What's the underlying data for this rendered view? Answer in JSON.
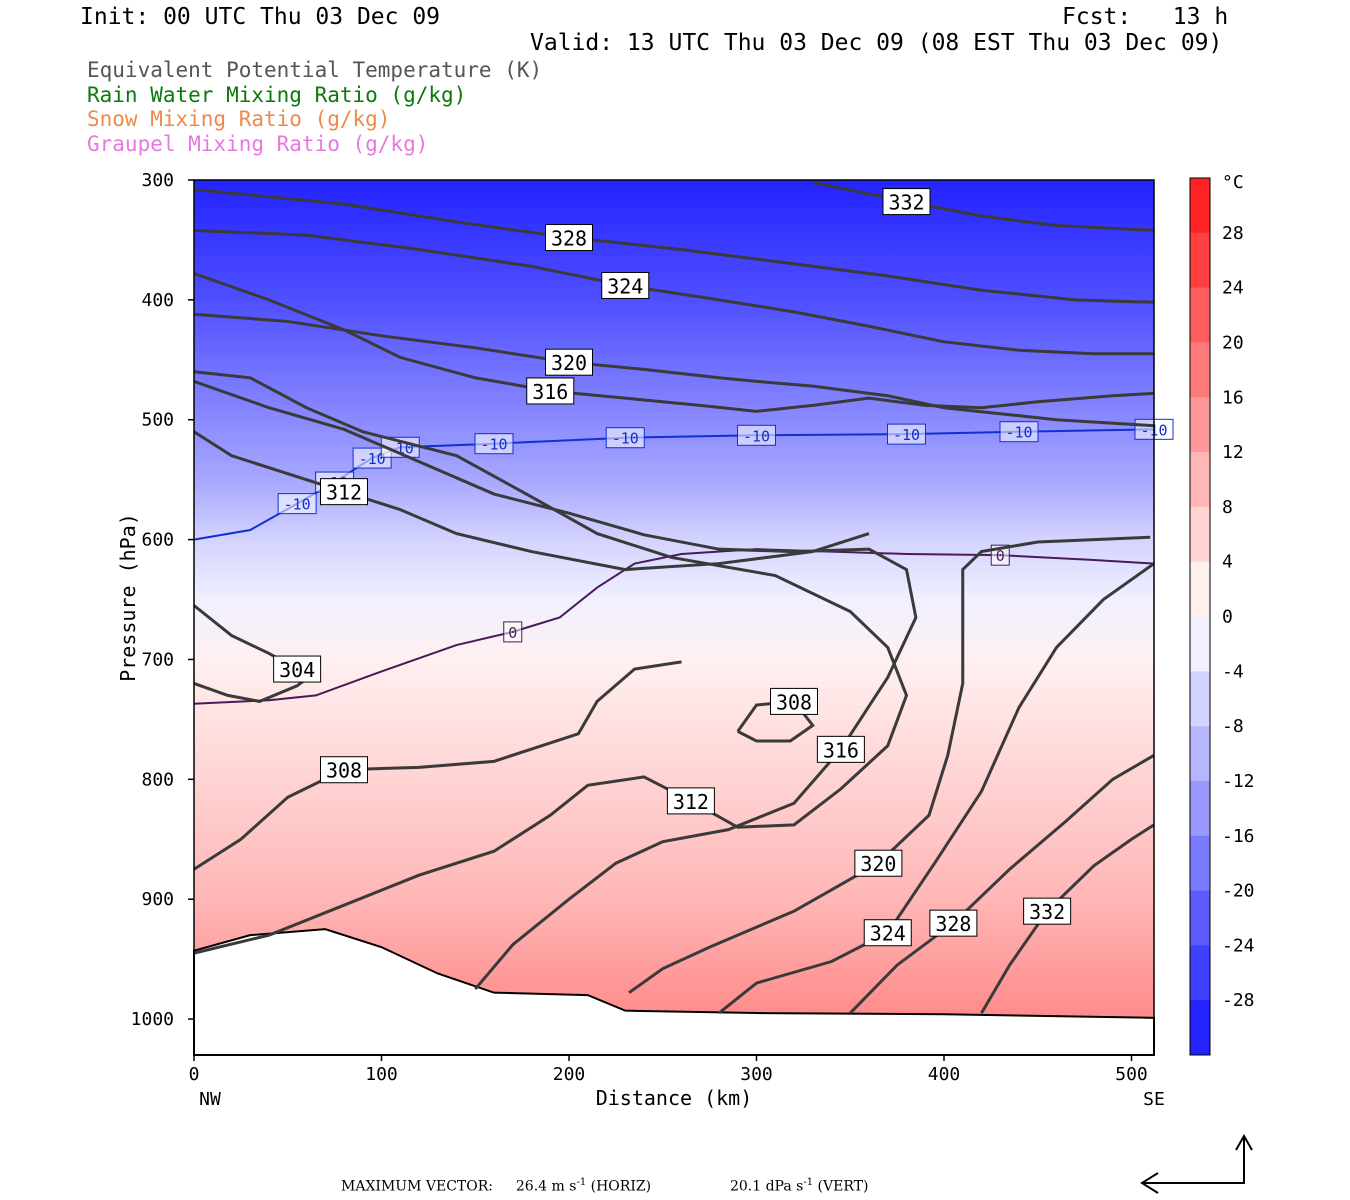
{
  "header": {
    "init": "Init: 00 UTC Thu 03 Dec 09",
    "fcst": "Fcst:   13 h",
    "valid": "Valid: 13 UTC Thu 03 Dec 09 (08 EST Thu 03 Dec 09)"
  },
  "legend": [
    {
      "label": "Equivalent Potential Temperature (K)",
      "color": "#555555"
    },
    {
      "label": "Rain Water Mixing Ratio (g/kg)",
      "color": "#0a7a0a"
    },
    {
      "label": "Snow Mixing Ratio (g/kg)",
      "color": "#f0884a"
    },
    {
      "label": "Graupel Mixing Ratio (g/kg)",
      "color": "#e878e0"
    }
  ],
  "footer": {
    "max_label": "MAXIMUM VECTOR:",
    "horiz_value": "26.4 m s",
    "horiz_exp": "-1",
    "horiz_unit": "(HORIZ)",
    "vert_value": "20.1 dPa s",
    "vert_exp": "-1",
    "vert_unit": "(VERT)"
  },
  "chart_data": {
    "type": "cross-section",
    "xlabel": "Distance (km)",
    "ylabel": "Pressure (hPa)",
    "xlim": [
      0,
      512
    ],
    "ylim": [
      1030,
      300
    ],
    "x_ticks": [
      "0",
      "100",
      "200",
      "300",
      "400",
      "500"
    ],
    "x_tick_values": [
      0,
      100,
      200,
      300,
      400,
      500
    ],
    "y_ticks": [
      "300",
      "400",
      "500",
      "600",
      "700",
      "800",
      "900",
      "1000"
    ],
    "y_tick_values": [
      300,
      400,
      500,
      600,
      700,
      800,
      900,
      1000
    ],
    "left_end_label": "NW",
    "right_end_label": "SE",
    "colorbar": {
      "unit": "°C",
      "tick_labels": [
        "28",
        "24",
        "20",
        "16",
        "12",
        "8",
        "4",
        "0",
        "-4",
        "-8",
        "-12",
        "-16",
        "-20",
        "-24",
        "-28"
      ],
      "tick_values": [
        28,
        24,
        20,
        16,
        12,
        8,
        4,
        0,
        -4,
        -8,
        -12,
        -16,
        -20,
        -24,
        -28
      ],
      "range": [
        -32,
        32
      ]
    },
    "theta_e_contours": [
      {
        "level": 304,
        "label": "304",
        "points": [
          [
            0,
            655
          ],
          [
            20,
            680
          ],
          [
            40,
            695
          ],
          [
            55,
            708
          ],
          [
            65,
            710
          ],
          [
            55,
            722
          ],
          [
            35,
            735
          ],
          [
            18,
            730
          ],
          [
            0,
            720
          ]
        ]
      },
      {
        "level": 308,
        "label": "308",
        "points": [
          [
            0,
            875
          ],
          [
            25,
            850
          ],
          [
            50,
            815
          ],
          [
            80,
            792
          ],
          [
            120,
            790
          ],
          [
            160,
            785
          ],
          [
            205,
            762
          ],
          [
            215,
            735
          ],
          [
            235,
            708
          ],
          [
            260,
            702
          ]
        ]
      },
      {
        "level": 308,
        "label": "308",
        "points": [
          [
            290,
            760
          ],
          [
            300,
            738
          ],
          [
            320,
            735
          ],
          [
            330,
            755
          ],
          [
            318,
            768
          ],
          [
            300,
            768
          ],
          [
            290,
            760
          ]
        ]
      },
      {
        "level": 312,
        "label": "312",
        "points": [
          [
            0,
            945
          ],
          [
            40,
            930
          ],
          [
            80,
            905
          ],
          [
            120,
            880
          ],
          [
            160,
            860
          ],
          [
            190,
            830
          ],
          [
            210,
            805
          ],
          [
            240,
            798
          ],
          [
            265,
            818
          ],
          [
            290,
            840
          ],
          [
            320,
            838
          ],
          [
            345,
            808
          ],
          [
            370,
            772
          ],
          [
            380,
            730
          ],
          [
            370,
            690
          ],
          [
            350,
            660
          ],
          [
            310,
            630
          ],
          [
            255,
            615
          ],
          [
            215,
            595
          ],
          [
            175,
            560
          ],
          [
            140,
            530
          ],
          [
            90,
            510
          ],
          [
            60,
            490
          ],
          [
            30,
            465
          ],
          [
            0,
            460
          ]
        ]
      },
      {
        "level": 316,
        "label": "316",
        "points": [
          [
            150,
            975
          ],
          [
            170,
            938
          ],
          [
            200,
            900
          ],
          [
            225,
            870
          ],
          [
            250,
            852
          ],
          [
            285,
            842
          ],
          [
            320,
            820
          ],
          [
            345,
            775
          ],
          [
            370,
            715
          ],
          [
            385,
            665
          ],
          [
            380,
            625
          ],
          [
            360,
            608
          ],
          [
            320,
            610
          ],
          [
            280,
            608
          ],
          [
            240,
            596
          ],
          [
            200,
            578
          ],
          [
            160,
            562
          ],
          [
            120,
            535
          ],
          [
            80,
            508
          ],
          [
            40,
            490
          ],
          [
            0,
            468
          ]
        ]
      },
      {
        "level": 320,
        "label": "320",
        "points": [
          [
            232,
            978
          ],
          [
            250,
            958
          ],
          [
            275,
            940
          ],
          [
            320,
            910
          ],
          [
            365,
            870
          ],
          [
            392,
            830
          ],
          [
            402,
            780
          ],
          [
            410,
            720
          ],
          [
            410,
            660
          ],
          [
            410,
            625
          ],
          [
            420,
            610
          ],
          [
            450,
            602
          ],
          [
            480,
            600
          ],
          [
            510,
            598
          ]
        ]
      },
      {
        "level": 324,
        "label": "324",
        "points": [
          [
            280,
            995
          ],
          [
            300,
            970
          ],
          [
            340,
            952
          ],
          [
            370,
            928
          ],
          [
            395,
            870
          ],
          [
            420,
            810
          ],
          [
            440,
            740
          ],
          [
            460,
            690
          ],
          [
            485,
            650
          ],
          [
            512,
            620
          ]
        ]
      },
      {
        "level": 328,
        "label": "328",
        "points": [
          [
            350,
            995
          ],
          [
            375,
            955
          ],
          [
            405,
            920
          ],
          [
            435,
            875
          ],
          [
            465,
            835
          ],
          [
            490,
            800
          ],
          [
            512,
            780
          ]
        ]
      },
      {
        "level": 332,
        "label": "332",
        "points": [
          [
            420,
            995
          ],
          [
            435,
            955
          ],
          [
            455,
            910
          ],
          [
            480,
            872
          ],
          [
            500,
            850
          ],
          [
            512,
            838
          ]
        ]
      },
      {
        "level": 312,
        "label": "312",
        "points": [
          [
            0,
            510
          ],
          [
            20,
            530
          ],
          [
            50,
            545
          ],
          [
            80,
            560
          ],
          [
            110,
            575
          ],
          [
            140,
            595
          ],
          [
            180,
            610
          ],
          [
            230,
            625
          ],
          [
            280,
            620
          ],
          [
            330,
            610
          ],
          [
            360,
            595
          ]
        ]
      },
      {
        "level": 316,
        "label": "316",
        "points": [
          [
            0,
            378
          ],
          [
            40,
            400
          ],
          [
            80,
            425
          ],
          [
            110,
            448
          ],
          [
            150,
            465
          ],
          [
            190,
            476
          ],
          [
            230,
            482
          ],
          [
            270,
            488
          ],
          [
            300,
            493
          ],
          [
            330,
            488
          ],
          [
            360,
            482
          ],
          [
            390,
            488
          ],
          [
            420,
            490
          ],
          [
            450,
            485
          ],
          [
            490,
            480
          ],
          [
            512,
            478
          ]
        ]
      },
      {
        "level": 320,
        "label": "320",
        "points": [
          [
            0,
            412
          ],
          [
            50,
            418
          ],
          [
            100,
            430
          ],
          [
            150,
            440
          ],
          [
            200,
            452
          ],
          [
            240,
            458
          ],
          [
            280,
            465
          ],
          [
            300,
            468
          ],
          [
            330,
            472
          ],
          [
            370,
            480
          ],
          [
            400,
            490
          ],
          [
            430,
            495
          ],
          [
            460,
            500
          ],
          [
            512,
            505
          ]
        ]
      },
      {
        "level": 324,
        "label": "324",
        "points": [
          [
            0,
            342
          ],
          [
            60,
            346
          ],
          [
            120,
            358
          ],
          [
            180,
            372
          ],
          [
            230,
            388
          ],
          [
            280,
            400
          ],
          [
            320,
            410
          ],
          [
            360,
            422
          ],
          [
            400,
            435
          ],
          [
            440,
            442
          ],
          [
            480,
            445
          ],
          [
            512,
            445
          ]
        ]
      },
      {
        "level": 328,
        "label": "328",
        "points": [
          [
            0,
            308
          ],
          [
            80,
            320
          ],
          [
            140,
            335
          ],
          [
            200,
            348
          ],
          [
            260,
            358
          ],
          [
            320,
            370
          ],
          [
            370,
            380
          ],
          [
            420,
            392
          ],
          [
            470,
            400
          ],
          [
            512,
            402
          ]
        ]
      },
      {
        "level": 332,
        "label": "332",
        "points": [
          [
            330,
            302
          ],
          [
            380,
            318
          ],
          [
            420,
            330
          ],
          [
            460,
            338
          ],
          [
            512,
            342
          ]
        ]
      }
    ],
    "isotherms": [
      {
        "level": -10,
        "label": "-10",
        "points": [
          [
            0,
            600
          ],
          [
            30,
            592
          ],
          [
            55,
            570
          ],
          [
            75,
            552
          ],
          [
            95,
            532
          ],
          [
            110,
            523
          ],
          [
            160,
            520
          ],
          [
            230,
            515
          ],
          [
            300,
            513
          ],
          [
            380,
            512
          ],
          [
            440,
            510
          ],
          [
            512,
            508
          ]
        ]
      },
      {
        "level": 0,
        "label": "0",
        "points": [
          [
            0,
            737
          ],
          [
            40,
            734
          ],
          [
            65,
            730
          ],
          [
            100,
            710
          ],
          [
            140,
            688
          ],
          [
            170,
            677
          ],
          [
            195,
            665
          ],
          [
            215,
            640
          ],
          [
            235,
            620
          ],
          [
            260,
            612
          ],
          [
            300,
            608
          ],
          [
            340,
            610
          ],
          [
            380,
            612
          ],
          [
            430,
            613
          ],
          [
            480,
            617
          ],
          [
            512,
            620
          ]
        ]
      }
    ],
    "temperature_levels": [
      {
        "p": 300,
        "t": -30
      },
      {
        "p": 400,
        "t": -24
      },
      {
        "p": 500,
        "t": -16
      },
      {
        "p": 550,
        "t": -12
      },
      {
        "p": 600,
        "t": -6
      },
      {
        "p": 650,
        "t": -2
      },
      {
        "p": 700,
        "t": 2
      },
      {
        "p": 800,
        "t": 6
      },
      {
        "p": 900,
        "t": 10
      },
      {
        "p": 1000,
        "t": 16
      }
    ],
    "terrain_pressure": [
      {
        "x": 0,
        "p": 943
      },
      {
        "x": 30,
        "p": 930
      },
      {
        "x": 70,
        "p": 925
      },
      {
        "x": 100,
        "p": 940
      },
      {
        "x": 130,
        "p": 962
      },
      {
        "x": 160,
        "p": 978
      },
      {
        "x": 210,
        "p": 980
      },
      {
        "x": 230,
        "p": 993
      },
      {
        "x": 300,
        "p": 995
      },
      {
        "x": 400,
        "p": 996
      },
      {
        "x": 512,
        "p": 999
      }
    ]
  }
}
